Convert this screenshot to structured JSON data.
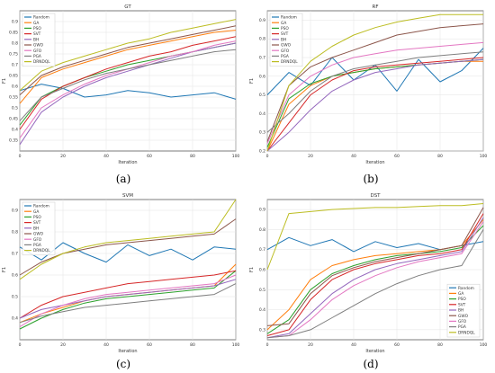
{
  "captions": [
    "(a)",
    "(b)",
    "(c)",
    "(d)"
  ],
  "legend_labels": [
    "Random",
    "GA",
    "PSO",
    "SVT",
    "BH",
    "GWO",
    "GFO",
    "PGA",
    "DRNDQL"
  ],
  "series_colors": [
    "#1f77b4",
    "#ff7f0e",
    "#2ca02c",
    "#d62728",
    "#9467bd",
    "#8c564b",
    "#e377c2",
    "#7f7f7f",
    "#bcbd22"
  ],
  "chart_data": [
    {
      "type": "line",
      "title": "GT",
      "xlabel": "Iteration",
      "ylabel": "F1",
      "xlim": [
        0,
        100
      ],
      "ylim": [
        0.3,
        0.95
      ],
      "xticks": [
        0,
        20,
        40,
        60,
        80,
        100
      ],
      "yticks": [
        0.35,
        0.4,
        0.45,
        0.5,
        0.55,
        0.6,
        0.65,
        0.7,
        0.75,
        0.8,
        0.85,
        0.9
      ],
      "grid": true,
      "legend": "upper-left",
      "x": [
        0,
        10,
        20,
        30,
        40,
        50,
        60,
        70,
        80,
        90,
        100
      ],
      "series": [
        {
          "name": "Random",
          "values": [
            0.58,
            0.61,
            0.59,
            0.55,
            0.56,
            0.58,
            0.57,
            0.55,
            0.56,
            0.57,
            0.54
          ]
        },
        {
          "name": "GA",
          "values": [
            0.52,
            0.64,
            0.68,
            0.71,
            0.74,
            0.77,
            0.79,
            0.81,
            0.83,
            0.85,
            0.86
          ]
        },
        {
          "name": "PSO",
          "values": [
            0.42,
            0.55,
            0.6,
            0.64,
            0.67,
            0.7,
            0.72,
            0.74,
            0.76,
            0.78,
            0.8
          ]
        },
        {
          "name": "SVT",
          "values": [
            0.4,
            0.54,
            0.6,
            0.64,
            0.68,
            0.71,
            0.74,
            0.76,
            0.79,
            0.81,
            0.83
          ]
        },
        {
          "name": "BH",
          "values": [
            0.33,
            0.48,
            0.55,
            0.6,
            0.64,
            0.67,
            0.7,
            0.73,
            0.76,
            0.78,
            0.8
          ]
        },
        {
          "name": "GWO",
          "values": [
            0.56,
            0.65,
            0.69,
            0.72,
            0.75,
            0.78,
            0.8,
            0.82,
            0.84,
            0.86,
            0.88
          ]
        },
        {
          "name": "GFO",
          "values": [
            0.36,
            0.5,
            0.56,
            0.61,
            0.65,
            0.68,
            0.71,
            0.74,
            0.76,
            0.79,
            0.81
          ]
        },
        {
          "name": "PGA",
          "values": [
            0.44,
            0.55,
            0.59,
            0.63,
            0.66,
            0.68,
            0.7,
            0.72,
            0.74,
            0.76,
            0.77
          ]
        },
        {
          "name": "DRNDQL",
          "values": [
            0.58,
            0.67,
            0.71,
            0.74,
            0.77,
            0.8,
            0.82,
            0.85,
            0.87,
            0.89,
            0.91
          ]
        }
      ]
    },
    {
      "type": "line",
      "title": "RF",
      "xlabel": "Iteration",
      "ylabel": "F1",
      "xlim": [
        0,
        100
      ],
      "ylim": [
        0.2,
        0.95
      ],
      "xticks": [
        0,
        20,
        40,
        60,
        80,
        100
      ],
      "yticks": [
        0.2,
        0.3,
        0.4,
        0.5,
        0.6,
        0.7,
        0.8,
        0.9
      ],
      "grid": true,
      "legend": "upper-left",
      "x": [
        0,
        10,
        20,
        30,
        40,
        50,
        60,
        70,
        80,
        90,
        100
      ],
      "series": [
        {
          "name": "Random",
          "values": [
            0.5,
            0.62,
            0.55,
            0.7,
            0.58,
            0.66,
            0.52,
            0.69,
            0.57,
            0.63,
            0.75
          ]
        },
        {
          "name": "GA",
          "values": [
            0.2,
            0.45,
            0.55,
            0.6,
            0.62,
            0.64,
            0.65,
            0.66,
            0.67,
            0.68,
            0.68
          ]
        },
        {
          "name": "PSO",
          "values": [
            0.22,
            0.48,
            0.56,
            0.6,
            0.62,
            0.64,
            0.65,
            0.66,
            0.67,
            0.68,
            0.69
          ]
        },
        {
          "name": "SVT",
          "values": [
            0.2,
            0.35,
            0.5,
            0.58,
            0.63,
            0.65,
            0.66,
            0.67,
            0.68,
            0.69,
            0.7
          ]
        },
        {
          "name": "BH",
          "values": [
            0.2,
            0.3,
            0.42,
            0.52,
            0.58,
            0.62,
            0.64,
            0.66,
            0.67,
            0.68,
            0.69
          ]
        },
        {
          "name": "GWO",
          "values": [
            0.25,
            0.55,
            0.65,
            0.7,
            0.74,
            0.78,
            0.82,
            0.84,
            0.86,
            0.87,
            0.88
          ]
        },
        {
          "name": "GFO",
          "values": [
            0.24,
            0.5,
            0.6,
            0.66,
            0.7,
            0.72,
            0.74,
            0.75,
            0.76,
            0.77,
            0.78
          ]
        },
        {
          "name": "PGA",
          "values": [
            0.3,
            0.4,
            0.52,
            0.6,
            0.64,
            0.66,
            0.68,
            0.7,
            0.71,
            0.72,
            0.73
          ]
        },
        {
          "name": "DRNDQL",
          "values": [
            0.2,
            0.55,
            0.68,
            0.76,
            0.82,
            0.86,
            0.89,
            0.91,
            0.93,
            0.93,
            0.93
          ]
        }
      ]
    },
    {
      "type": "line",
      "title": "SVM",
      "xlabel": "Iteration",
      "ylabel": "F1",
      "xlim": [
        0,
        100
      ],
      "ylim": [
        0.3,
        0.95
      ],
      "xticks": [
        0,
        20,
        40,
        60,
        80,
        100
      ],
      "yticks": [
        0.4,
        0.5,
        0.6,
        0.7,
        0.8,
        0.9
      ],
      "grid": true,
      "legend": "upper-left",
      "x": [
        0,
        10,
        20,
        30,
        40,
        50,
        60,
        70,
        80,
        90,
        100
      ],
      "series": [
        {
          "name": "Random",
          "values": [
            0.73,
            0.67,
            0.75,
            0.7,
            0.66,
            0.74,
            0.69,
            0.72,
            0.67,
            0.73,
            0.72
          ]
        },
        {
          "name": "GA",
          "values": [
            0.38,
            0.42,
            0.45,
            0.48,
            0.5,
            0.51,
            0.52,
            0.53,
            0.54,
            0.55,
            0.65
          ]
        },
        {
          "name": "PSO",
          "values": [
            0.35,
            0.4,
            0.44,
            0.47,
            0.49,
            0.5,
            0.51,
            0.52,
            0.53,
            0.54,
            0.62
          ]
        },
        {
          "name": "SVT",
          "values": [
            0.4,
            0.46,
            0.5,
            0.52,
            0.54,
            0.56,
            0.57,
            0.58,
            0.59,
            0.6,
            0.62
          ]
        },
        {
          "name": "BH",
          "values": [
            0.4,
            0.44,
            0.46,
            0.48,
            0.5,
            0.51,
            0.52,
            0.53,
            0.54,
            0.55,
            0.58
          ]
        },
        {
          "name": "GWO",
          "values": [
            0.6,
            0.66,
            0.7,
            0.72,
            0.74,
            0.75,
            0.76,
            0.77,
            0.78,
            0.79,
            0.86
          ]
        },
        {
          "name": "GFO",
          "values": [
            0.36,
            0.42,
            0.46,
            0.49,
            0.51,
            0.52,
            0.53,
            0.54,
            0.55,
            0.56,
            0.6
          ]
        },
        {
          "name": "PGA",
          "values": [
            0.38,
            0.41,
            0.43,
            0.45,
            0.46,
            0.47,
            0.48,
            0.49,
            0.5,
            0.51,
            0.56
          ]
        },
        {
          "name": "DRNDQL",
          "values": [
            0.58,
            0.65,
            0.7,
            0.73,
            0.75,
            0.76,
            0.77,
            0.78,
            0.79,
            0.8,
            0.95
          ]
        }
      ]
    },
    {
      "type": "line",
      "title": "DST",
      "xlabel": "Iteration",
      "ylabel": "F1",
      "xlim": [
        0,
        100
      ],
      "ylim": [
        0.25,
        0.95
      ],
      "xticks": [
        0,
        20,
        40,
        60,
        80,
        100
      ],
      "yticks": [
        0.3,
        0.4,
        0.5,
        0.6,
        0.7,
        0.8,
        0.9
      ],
      "grid": true,
      "legend": "lower-right",
      "x": [
        0,
        10,
        20,
        30,
        40,
        50,
        60,
        70,
        80,
        90,
        100
      ],
      "series": [
        {
          "name": "Random",
          "values": [
            0.7,
            0.76,
            0.72,
            0.75,
            0.69,
            0.74,
            0.71,
            0.73,
            0.7,
            0.72,
            0.74
          ]
        },
        {
          "name": "GA",
          "values": [
            0.3,
            0.4,
            0.55,
            0.62,
            0.65,
            0.67,
            0.68,
            0.69,
            0.7,
            0.72,
            0.85
          ]
        },
        {
          "name": "PSO",
          "values": [
            0.28,
            0.35,
            0.5,
            0.58,
            0.62,
            0.65,
            0.67,
            0.68,
            0.69,
            0.71,
            0.82
          ]
        },
        {
          "name": "SVT",
          "values": [
            0.27,
            0.3,
            0.45,
            0.55,
            0.6,
            0.63,
            0.65,
            0.67,
            0.68,
            0.7,
            0.88
          ]
        },
        {
          "name": "BH",
          "values": [
            0.26,
            0.28,
            0.38,
            0.48,
            0.55,
            0.6,
            0.63,
            0.65,
            0.67,
            0.69,
            0.86
          ]
        },
        {
          "name": "GWO",
          "values": [
            0.32,
            0.33,
            0.48,
            0.57,
            0.61,
            0.64,
            0.66,
            0.68,
            0.7,
            0.72,
            0.91
          ]
        },
        {
          "name": "GFO",
          "values": [
            0.26,
            0.27,
            0.35,
            0.45,
            0.52,
            0.57,
            0.61,
            0.64,
            0.66,
            0.68,
            0.84
          ]
        },
        {
          "name": "PGA",
          "values": [
            0.26,
            0.27,
            0.3,
            0.36,
            0.42,
            0.48,
            0.53,
            0.57,
            0.6,
            0.62,
            0.8
          ]
        },
        {
          "name": "DRNDQL",
          "values": [
            0.6,
            0.88,
            0.89,
            0.9,
            0.905,
            0.91,
            0.91,
            0.915,
            0.92,
            0.92,
            0.93
          ]
        }
      ]
    }
  ]
}
